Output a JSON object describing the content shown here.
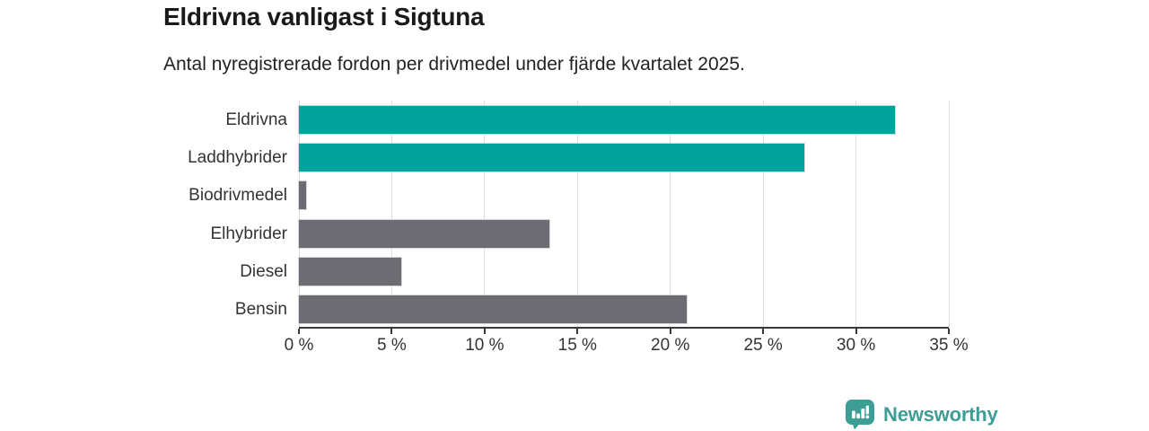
{
  "chart_data": {
    "type": "bar",
    "orientation": "horizontal",
    "title": "Eldrivna vanligast i Sigtuna",
    "subtitle": "Antal nyregistrerade fordon per drivmedel under fjärde kvartalet 2025.",
    "categories": [
      "Eldrivna",
      "Laddhybrider",
      "Biodrivmedel",
      "Elhybrider",
      "Diesel",
      "Bensin"
    ],
    "values": [
      32.1,
      27.2,
      0.4,
      13.5,
      5.5,
      20.9
    ],
    "unit": "%",
    "bar_colors": [
      "#00a29b",
      "#00a29b",
      "#6d6c72",
      "#6d6c72",
      "#6d6c72",
      "#6d6c72"
    ],
    "xlim": [
      0,
      35
    ],
    "x_ticks": [
      0,
      5,
      10,
      15,
      20,
      25,
      30,
      35
    ],
    "x_tick_labels": [
      "0 %",
      "5 %",
      "10 %",
      "15 %",
      "20 %",
      "25 %",
      "30 %",
      "35 %"
    ],
    "grid": true,
    "legend": "none",
    "xlabel": "",
    "ylabel": ""
  },
  "palette": {
    "electric_teal": "#00a29b",
    "neutral_gray": "#6d6c72",
    "gridline": "#dedede",
    "axis": "#3a3a3a",
    "title_text": "#1a1a1a",
    "label_text": "#333333"
  },
  "footer": {
    "brand": "Newsworthy",
    "brand_color": "#3d9e96",
    "logo_icon": "newsworthy-speech-bubble-bar-chart-icon"
  }
}
